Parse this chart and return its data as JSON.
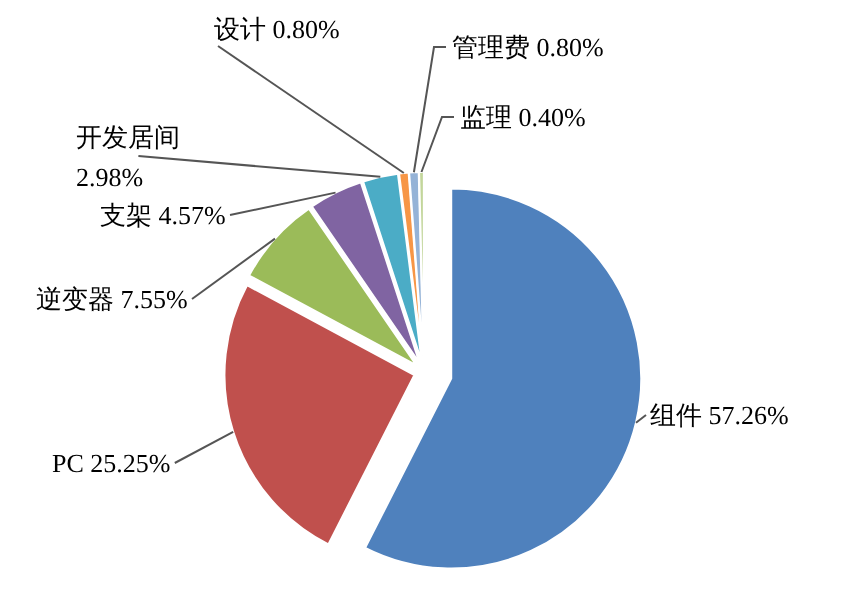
{
  "chart_data": {
    "type": "pie",
    "categories": [
      "组件",
      "PC",
      "逆变器",
      "支架",
      "开发居间",
      "设计",
      "管理费",
      "监理"
    ],
    "values": [
      57.26,
      25.25,
      7.55,
      4.57,
      2.98,
      0.8,
      0.8,
      0.4
    ],
    "value_labels": [
      "57.26%",
      "25.25%",
      "7.55%",
      "4.57%",
      "2.98%",
      "0.80%",
      "0.80%",
      "0.40%"
    ],
    "colors": [
      "#4f81bd",
      "#c0504d",
      "#9bbb59",
      "#8064a2",
      "#4bacc6",
      "#f79646",
      "#95b3d7",
      "#c3d69b"
    ]
  }
}
